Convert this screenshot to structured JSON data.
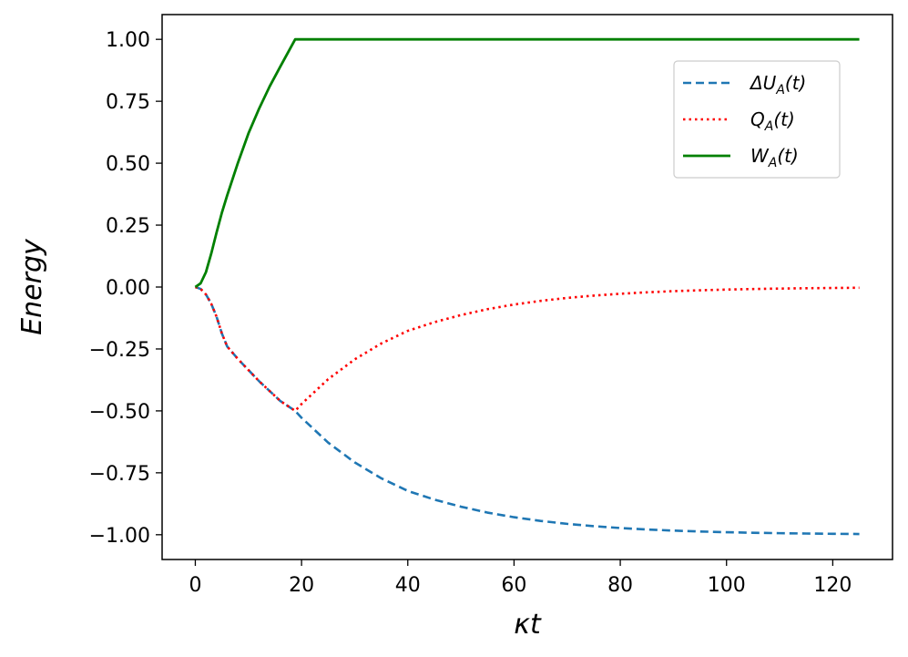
{
  "chart_data": {
    "type": "line",
    "title": "",
    "xlabel": "κt",
    "ylabel": "Energy",
    "xlim": [
      -6.25,
      131.25
    ],
    "ylim": [
      -1.1,
      1.1
    ],
    "grid": false,
    "legend_position": "top-right",
    "x_ticks": [
      0,
      20,
      40,
      60,
      80,
      100,
      120
    ],
    "x_tick_labels": [
      "0",
      "20",
      "40",
      "60",
      "80",
      "100",
      "120"
    ],
    "y_ticks": [
      1.0,
      0.75,
      0.5,
      0.25,
      0.0,
      -0.25,
      -0.5,
      -0.75,
      -1.0
    ],
    "y_tick_labels": [
      "1.00",
      "0.75",
      "0.50",
      "0.25",
      "0.00",
      "−0.25",
      "−0.50",
      "−0.75",
      "−1.00"
    ],
    "series": [
      {
        "name_base": "ΔU",
        "name_sub": "A",
        "name_arg": "(t)",
        "color": "#1f77b4",
        "dash": "9,5",
        "x": [
          0,
          1,
          2,
          3,
          4,
          5,
          6,
          8,
          10,
          12,
          14,
          16,
          18.8,
          20,
          25,
          30,
          35,
          40,
          45,
          50,
          55,
          60,
          65,
          70,
          75,
          80,
          85,
          90,
          95,
          100,
          105,
          110,
          115,
          120,
          125
        ],
        "y": [
          0,
          -0.0075,
          -0.03,
          -0.0675,
          -0.12,
          -0.1875,
          -0.24,
          -0.29,
          -0.335,
          -0.38,
          -0.42,
          -0.46,
          -0.5,
          -0.5278,
          -0.6279,
          -0.7079,
          -0.772,
          -0.8232,
          -0.8581,
          -0.8868,
          -0.9107,
          -0.9293,
          -0.9442,
          -0.9561,
          -0.9654,
          -0.9729,
          -0.9787,
          -0.9834,
          -0.9869,
          -0.9898,
          -0.9921,
          -0.9938,
          -0.9952,
          -0.9963,
          -0.9971
        ]
      },
      {
        "name_base": "Q",
        "name_sub": "A",
        "name_arg": "(t)",
        "color": "#ff0000",
        "dash": "2.5,4",
        "x": [
          0,
          1,
          2,
          3,
          4,
          5,
          6,
          8,
          10,
          12,
          14,
          16,
          18.8,
          20,
          25,
          30,
          35,
          40,
          45,
          50,
          55,
          60,
          65,
          70,
          75,
          80,
          85,
          90,
          95,
          100,
          105,
          110,
          115,
          120,
          125
        ],
        "y": [
          0,
          -0.0075,
          -0.03,
          -0.0675,
          -0.12,
          -0.1875,
          -0.24,
          -0.29,
          -0.335,
          -0.38,
          -0.42,
          -0.46,
          -0.5,
          -0.4722,
          -0.3721,
          -0.2921,
          -0.228,
          -0.1768,
          -0.1419,
          -0.1132,
          -0.0893,
          -0.0707,
          -0.0558,
          -0.0439,
          -0.0346,
          -0.0271,
          -0.0213,
          -0.0166,
          -0.0131,
          -0.0102,
          -0.0079,
          -0.0062,
          -0.0048,
          -0.0037,
          -0.0029
        ]
      },
      {
        "name_base": "W",
        "name_sub": "A",
        "name_arg": "(t)",
        "color": "#008000",
        "dash": "",
        "x": [
          0,
          1,
          2,
          3,
          4,
          5,
          6,
          8,
          10,
          12,
          14,
          16,
          18.8,
          20,
          40,
          60,
          80,
          100,
          125
        ],
        "y": [
          0,
          0.015,
          0.06,
          0.135,
          0.22,
          0.3,
          0.37,
          0.5,
          0.62,
          0.72,
          0.81,
          0.89,
          1.0,
          1.0,
          1.0,
          1.0,
          1.0,
          1.0,
          1.0
        ]
      }
    ]
  }
}
